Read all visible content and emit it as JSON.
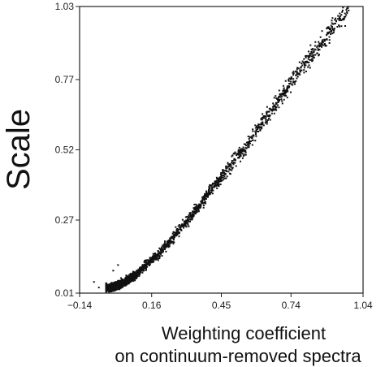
{
  "chart_data": {
    "type": "scatter",
    "title": "",
    "xlabel_line1": "Weighting coefficient",
    "xlabel_line2": "on continuum-removed spectra",
    "ylabel": "Scale",
    "xlim": [
      -0.14,
      1.04
    ],
    "ylim": [
      0.01,
      1.03
    ],
    "x_ticks": [
      "−0.14",
      "0.16",
      "0.45",
      "0.74",
      "1.04"
    ],
    "y_ticks": [
      "1.03",
      "0.77",
      "0.52",
      "0.27",
      "0.01"
    ],
    "x_tick_values": [
      -0.14,
      0.16,
      0.45,
      0.74,
      1.04
    ],
    "y_tick_values": [
      1.03,
      0.77,
      0.52,
      0.27,
      0.01
    ],
    "grid": false,
    "point_color": "#111111",
    "trend_x": [
      0.0,
      0.05,
      0.1,
      0.15,
      0.2,
      0.25,
      0.3,
      0.35,
      0.4,
      0.45,
      0.5,
      0.55,
      0.6,
      0.65,
      0.7,
      0.75,
      0.8,
      0.85,
      0.9,
      0.95,
      0.98
    ],
    "trend_y": [
      0.03,
      0.05,
      0.08,
      0.12,
      0.16,
      0.21,
      0.26,
      0.31,
      0.37,
      0.42,
      0.48,
      0.53,
      0.59,
      0.65,
      0.71,
      0.77,
      0.83,
      0.88,
      0.94,
      0.99,
      1.01
    ]
  }
}
